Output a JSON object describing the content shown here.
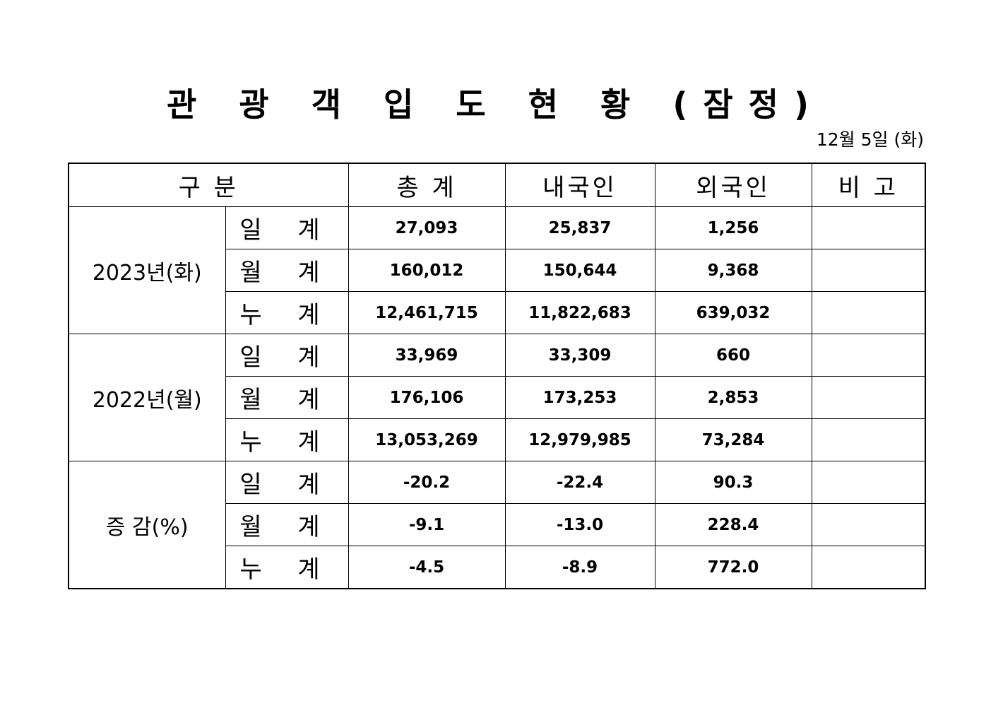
{
  "title": "관 광 객 입 도 현 황 (잠정)",
  "date": "12월 5일 (화)",
  "headers": [
    "구  분",
    "총  계",
    "내국인",
    "외국인",
    "비  고"
  ],
  "groups": [
    {
      "label": "2023년(화)",
      "rows": [
        {
          "label": "일 계",
          "total": "27,093",
          "domestic": "25,837",
          "foreign": "1,256",
          "note": ""
        },
        {
          "label": "월 계",
          "total": "160,012",
          "domestic": "150,644",
          "foreign": "9,368",
          "note": ""
        },
        {
          "label": "누 계",
          "total": "12,461,715",
          "domestic": "11,822,683",
          "foreign": "639,032",
          "note": ""
        }
      ]
    },
    {
      "label": "2022년(월)",
      "rows": [
        {
          "label": "일 계",
          "total": "33,969",
          "domestic": "33,309",
          "foreign": "660",
          "note": ""
        },
        {
          "label": "월 계",
          "total": "176,106",
          "domestic": "173,253",
          "foreign": "2,853",
          "note": ""
        },
        {
          "label": "누 계",
          "total": "13,053,269",
          "domestic": "12,979,985",
          "foreign": "73,284",
          "note": ""
        }
      ]
    },
    {
      "label": "증 감(%)",
      "rows": [
        {
          "label": "일 계",
          "total": "-20.2",
          "domestic": "-22.4",
          "foreign": "90.3",
          "note": ""
        },
        {
          "label": "월 계",
          "total": "-9.1",
          "domestic": "-13.0",
          "foreign": "228.4",
          "note": ""
        },
        {
          "label": "누 계",
          "total": "-4.5",
          "domestic": "-8.9",
          "foreign": "772.0",
          "note": ""
        }
      ]
    }
  ]
}
